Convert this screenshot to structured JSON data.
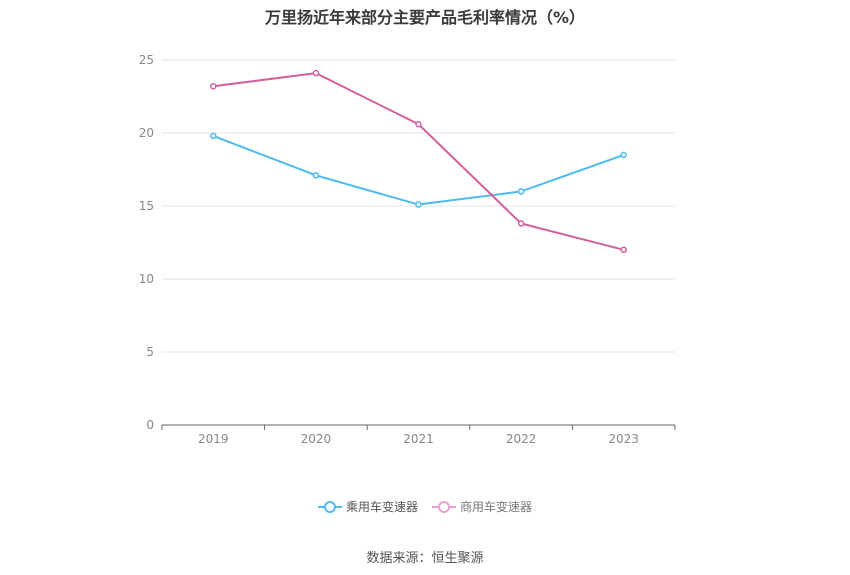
{
  "title": "万里扬近年来部分主要产品毛利率情况（%）",
  "source": "数据来源：恒生聚源",
  "colors": {
    "passenger": "#4bbbf0",
    "commercial": "#d0609f",
    "commercial_legend": "#f0a0cf",
    "grid": "#e6e6ee",
    "axis": "#666666",
    "tick_text": "#888888"
  },
  "chart_data": {
    "type": "line",
    "title": "万里扬近年来部分主要产品毛利率情况（%）",
    "xlabel": "",
    "ylabel": "",
    "x": [
      "2019",
      "2020",
      "2021",
      "2022",
      "2023"
    ],
    "ylim": [
      0,
      25
    ],
    "yticks": [
      0,
      5,
      10,
      15,
      20,
      25
    ],
    "grid": true,
    "legend_position": "bottom",
    "series": [
      {
        "name": "乘用车变速器",
        "values": [
          19.8,
          17.1,
          15.1,
          16.0,
          18.5
        ]
      },
      {
        "name": "商用车变速器",
        "values": [
          23.2,
          24.1,
          20.6,
          13.8,
          12.0
        ]
      }
    ]
  }
}
